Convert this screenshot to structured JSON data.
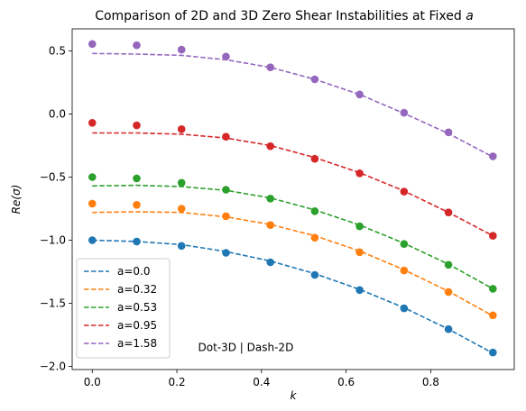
{
  "chart_data": {
    "type": "line",
    "title": "Comparison of 2D and 3D Zero Shear Instabilities at Fixed ",
    "title_italic": "a",
    "xlabel": "k",
    "ylabel": "Re(σ)",
    "xlim": [
      -0.0475,
      0.9975
    ],
    "ylim": [
      -2.025,
      0.675
    ],
    "xticks": [
      0.0,
      0.2,
      0.4,
      0.6,
      0.8
    ],
    "xtick_labels": [
      "0.0",
      "0.2",
      "0.4",
      "0.6",
      "0.8"
    ],
    "yticks": [
      -2.0,
      -1.5,
      -1.0,
      -0.5,
      0.0,
      0.5
    ],
    "ytick_labels": [
      "−2.0",
      "−1.5",
      "−1.0",
      "−0.5",
      "0.0",
      "0.5"
    ],
    "x": [
      0.0,
      0.105,
      0.211,
      0.316,
      0.421,
      0.526,
      0.632,
      0.737,
      0.842,
      0.947
    ],
    "series": [
      {
        "name": "a=0.0",
        "color": "#1f77b4",
        "dash_2d": [
          -1.0,
          -1.01,
          -1.035,
          -1.09,
          -1.165,
          -1.265,
          -1.39,
          -1.535,
          -1.705,
          -1.895
        ],
        "dot_3d": [
          -1.0,
          -1.01,
          -1.045,
          -1.1,
          -1.175,
          -1.275,
          -1.395,
          -1.54,
          -1.705,
          -1.89
        ]
      },
      {
        "name": "a=0.32",
        "color": "#ff7f0e",
        "dash_2d": [
          -0.78,
          -0.775,
          -0.78,
          -0.815,
          -0.875,
          -0.965,
          -1.085,
          -1.235,
          -1.405,
          -1.6
        ],
        "dot_3d": [
          -0.71,
          -0.72,
          -0.75,
          -0.81,
          -0.88,
          -0.98,
          -1.095,
          -1.24,
          -1.41,
          -1.595
        ]
      },
      {
        "name": "a=0.53",
        "color": "#2ca02c",
        "dash_2d": [
          -0.57,
          -0.565,
          -0.575,
          -0.605,
          -0.665,
          -0.76,
          -0.88,
          -1.025,
          -1.19,
          -1.385
        ],
        "dot_3d": [
          -0.5,
          -0.51,
          -0.545,
          -0.6,
          -0.67,
          -0.77,
          -0.89,
          -1.03,
          -1.195,
          -1.385
        ]
      },
      {
        "name": "a=0.95",
        "color": "#d62728",
        "dash_2d": [
          -0.15,
          -0.15,
          -0.16,
          -0.19,
          -0.25,
          -0.345,
          -0.465,
          -0.61,
          -0.78,
          -0.965
        ],
        "dot_3d": [
          -0.07,
          -0.09,
          -0.12,
          -0.18,
          -0.255,
          -0.355,
          -0.47,
          -0.615,
          -0.78,
          -0.965
        ]
      },
      {
        "name": "a=1.58",
        "color": "#9467bd",
        "dash_2d": [
          0.48,
          0.475,
          0.465,
          0.43,
          0.37,
          0.275,
          0.155,
          0.005,
          -0.155,
          -0.34
        ],
        "dot_3d": [
          0.555,
          0.545,
          0.51,
          0.455,
          0.37,
          0.275,
          0.155,
          0.01,
          -0.145,
          -0.335
        ]
      }
    ],
    "annotation": "Dot-3D | Dash-2D",
    "legend_location": "lower-left",
    "grid": false
  }
}
